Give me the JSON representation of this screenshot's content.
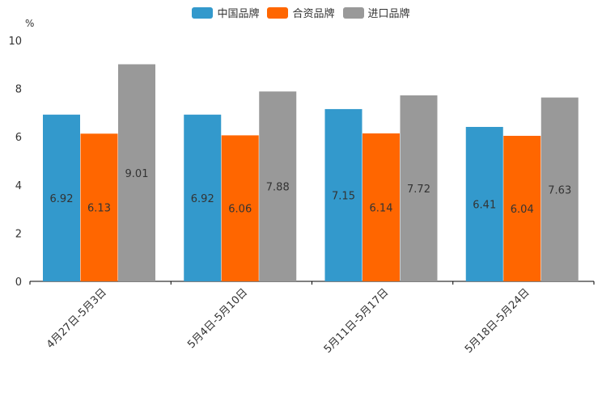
{
  "chart_data": {
    "type": "bar",
    "unit": "%",
    "categories": [
      "4月27日-5月3日",
      "5月4日-5月10日",
      "5月11日-5月17日",
      "5月18日-5月24日"
    ],
    "series": [
      {
        "name": "中国品牌",
        "color": "#3399cc",
        "values": [
          6.92,
          6.92,
          7.15,
          6.41
        ]
      },
      {
        "name": "合资品牌",
        "color": "#ff6600",
        "values": [
          6.13,
          6.06,
          6.14,
          6.04
        ]
      },
      {
        "name": "进口品牌",
        "color": "#999999",
        "values": [
          9.01,
          7.88,
          7.72,
          7.63
        ]
      }
    ],
    "ylim": [
      0,
      10
    ],
    "yticks": [
      0,
      2,
      4,
      6,
      8,
      10
    ],
    "legend_position": "top-center",
    "grid": false
  }
}
